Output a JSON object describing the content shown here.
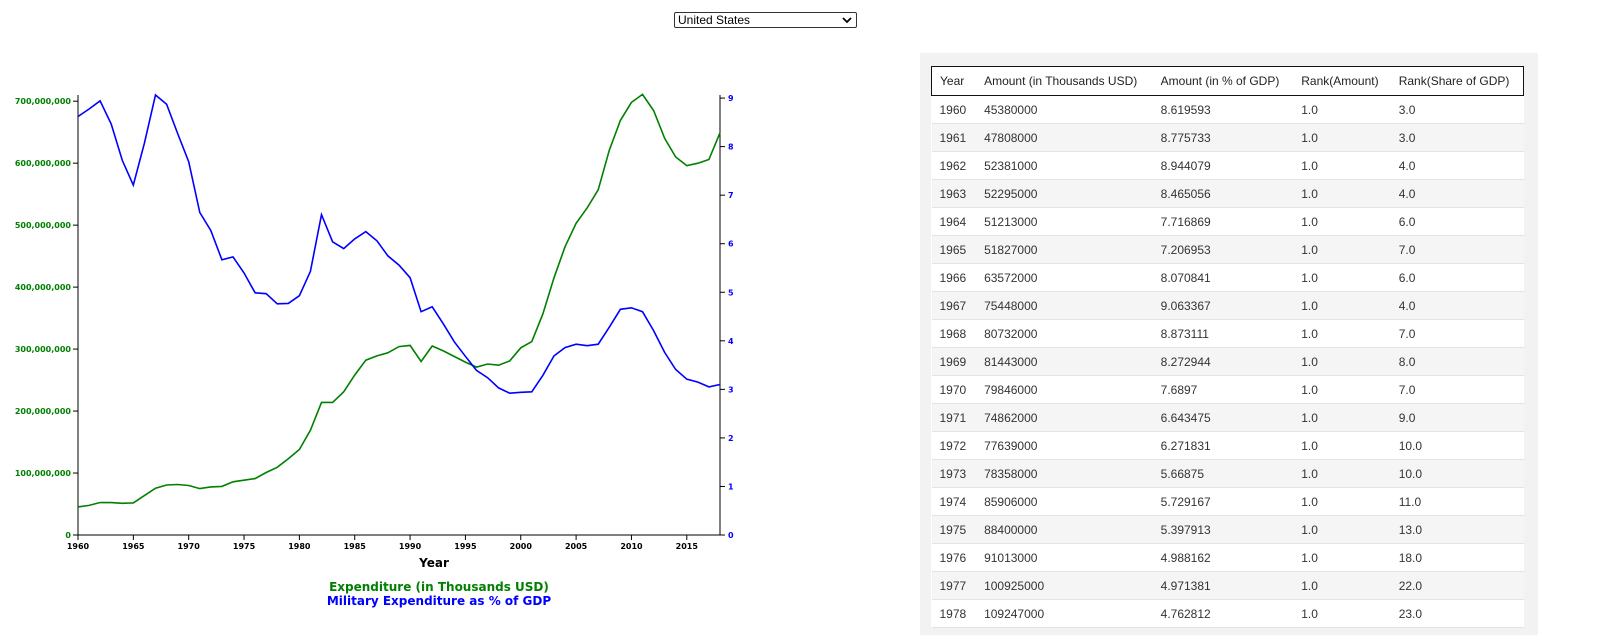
{
  "country_select": {
    "value": "United States"
  },
  "chart_data": {
    "type": "line",
    "xlabel": "Year",
    "x": [
      1960,
      1961,
      1962,
      1963,
      1964,
      1965,
      1966,
      1967,
      1968,
      1969,
      1970,
      1971,
      1972,
      1973,
      1974,
      1975,
      1976,
      1977,
      1978,
      1979,
      1980,
      1981,
      1982,
      1983,
      1984,
      1985,
      1986,
      1987,
      1988,
      1989,
      1990,
      1991,
      1992,
      1993,
      1994,
      1995,
      1996,
      1997,
      1998,
      1999,
      2000,
      2001,
      2002,
      2003,
      2004,
      2005,
      2006,
      2007,
      2008,
      2009,
      2010,
      2011,
      2012,
      2013,
      2014,
      2015,
      2016,
      2017,
      2018
    ],
    "xlim": [
      1960,
      2018
    ],
    "x_ticks": [
      "1960",
      "1965",
      "1970",
      "1975",
      "1980",
      "1985",
      "1990",
      "1995",
      "2000",
      "2005",
      "2010",
      "2015"
    ],
    "y_left": {
      "lim": [
        0,
        710000000
      ],
      "ticks": [
        "0",
        "100,000,000",
        "200,000,000",
        "300,000,000",
        "400,000,000",
        "500,000,000",
        "600,000,000",
        "700,000,000"
      ],
      "color": "#008000"
    },
    "y_right": {
      "lim": [
        0,
        9.063367
      ],
      "ticks": [
        "0",
        "1",
        "2",
        "3",
        "4",
        "5",
        "6",
        "7",
        "8",
        "9"
      ],
      "color": "#0000ff"
    },
    "series": [
      {
        "name": "Expenditure (in Thousands USD)",
        "axis": "left",
        "color": "#008000",
        "values": [
          45380000,
          47808000,
          52381000,
          52295000,
          51213000,
          51827000,
          63572000,
          75448000,
          80732000,
          81443000,
          79846000,
          74862000,
          77639000,
          78358000,
          85906000,
          88400000,
          91013000,
          100925000,
          109247000,
          123000000,
          138000000,
          169000000,
          214000000,
          214000000,
          231000000,
          258000000,
          282000000,
          289000000,
          294000000,
          304000000,
          306000000,
          280000000,
          305000000,
          297000000,
          288000000,
          279000000,
          271000000,
          276000000,
          274000000,
          281000000,
          302000000,
          312000000,
          357000000,
          415000000,
          465000000,
          503000000,
          528000000,
          557000000,
          621000000,
          669000000,
          698000000,
          711000000,
          685000000,
          640000000,
          610000000,
          596000000,
          600000000,
          606000000,
          649000000
        ]
      },
      {
        "name": "Military Expenditure as % of GDP",
        "axis": "right",
        "color": "#0000ff",
        "values": [
          8.619593,
          8.775733,
          8.944079,
          8.465056,
          7.716869,
          7.206953,
          8.070841,
          9.063367,
          8.873111,
          8.272944,
          7.6897,
          6.643475,
          6.271831,
          5.66875,
          5.729167,
          5.397913,
          4.988162,
          4.971381,
          4.762812,
          4.77,
          4.93,
          5.43,
          6.6,
          6.04,
          5.9,
          6.1,
          6.25,
          6.06,
          5.75,
          5.56,
          5.3,
          4.6,
          4.7,
          4.35,
          3.98,
          3.68,
          3.39,
          3.24,
          3.03,
          2.92,
          2.94,
          2.95,
          3.29,
          3.69,
          3.86,
          3.93,
          3.9,
          3.93,
          4.28,
          4.65,
          4.68,
          4.6,
          4.21,
          3.76,
          3.41,
          3.21,
          3.15,
          3.05,
          3.1
        ]
      }
    ]
  },
  "table": {
    "columns": [
      "Year",
      "Amount (in Thousands USD)",
      "Amount (in % of GDP)",
      "Rank(Amount)",
      "Rank(Share of GDP)"
    ],
    "rows": [
      [
        "1960",
        "45380000",
        "8.619593",
        "1.0",
        "3.0"
      ],
      [
        "1961",
        "47808000",
        "8.775733",
        "1.0",
        "3.0"
      ],
      [
        "1962",
        "52381000",
        "8.944079",
        "1.0",
        "4.0"
      ],
      [
        "1963",
        "52295000",
        "8.465056",
        "1.0",
        "4.0"
      ],
      [
        "1964",
        "51213000",
        "7.716869",
        "1.0",
        "6.0"
      ],
      [
        "1965",
        "51827000",
        "7.206953",
        "1.0",
        "7.0"
      ],
      [
        "1966",
        "63572000",
        "8.070841",
        "1.0",
        "6.0"
      ],
      [
        "1967",
        "75448000",
        "9.063367",
        "1.0",
        "4.0"
      ],
      [
        "1968",
        "80732000",
        "8.873111",
        "1.0",
        "7.0"
      ],
      [
        "1969",
        "81443000",
        "8.272944",
        "1.0",
        "8.0"
      ],
      [
        "1970",
        "79846000",
        "7.6897",
        "1.0",
        "7.0"
      ],
      [
        "1971",
        "74862000",
        "6.643475",
        "1.0",
        "9.0"
      ],
      [
        "1972",
        "77639000",
        "6.271831",
        "1.0",
        "10.0"
      ],
      [
        "1973",
        "78358000",
        "5.66875",
        "1.0",
        "10.0"
      ],
      [
        "1974",
        "85906000",
        "5.729167",
        "1.0",
        "11.0"
      ],
      [
        "1975",
        "88400000",
        "5.397913",
        "1.0",
        "13.0"
      ],
      [
        "1976",
        "91013000",
        "4.988162",
        "1.0",
        "18.0"
      ],
      [
        "1977",
        "100925000",
        "4.971381",
        "1.0",
        "22.0"
      ],
      [
        "1978",
        "109247000",
        "4.762812",
        "1.0",
        "23.0"
      ]
    ]
  }
}
